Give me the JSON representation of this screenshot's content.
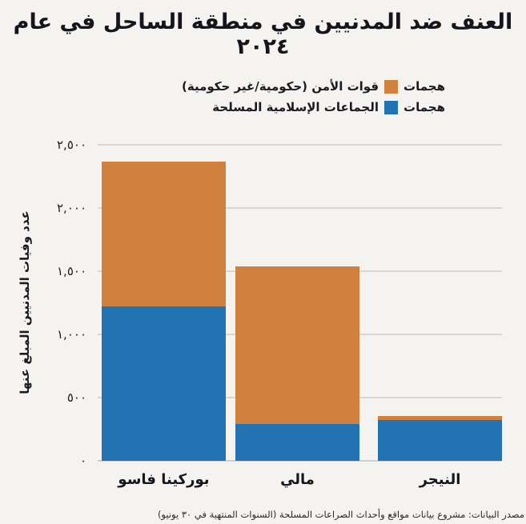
{
  "title": "العنف ضد المدنيين في منطقة الساحل في عام ٢٠٢٤",
  "legend": {
    "items": [
      {
        "word1": "هجمات",
        "rest": "قوات الأمن (حكومية/غير حكومية)",
        "color": "#d0813e"
      },
      {
        "word1": "هجمات",
        "rest": "الجماعات الإسلامية المسلحة",
        "color": "#2273b2"
      }
    ]
  },
  "footer": {
    "source": "مصدر البيانات: مشروع بيانات مواقع وأحداث الصراعات المسلحة (السنوات المنتهية في ٣٠ يونيو)"
  },
  "chart_data": {
    "type": "bar",
    "stacked": true,
    "title": "العنف ضد المدنيين في منطقة الساحل في عام ٢٠٢٤",
    "categories": [
      "بوركينا فاسو",
      "مالي",
      "النيجر"
    ],
    "series": [
      {
        "name": "هجمات الجماعات الإسلامية المسلحة",
        "color": "#2273b2",
        "values": [
          1220,
          290,
          325
        ]
      },
      {
        "name": "هجمات قوات الأمن (حكومية/غير حكومية)",
        "color": "#d0813e",
        "values": [
          1150,
          1250,
          30
        ]
      }
    ],
    "ylabel": "عدد وفيات المدنيين المبلغ عنها",
    "xlabel": "",
    "ylim": [
      0,
      2500
    ],
    "yticks": [
      0,
      500,
      1000,
      1500,
      2000,
      2500
    ],
    "ytick_labels": [
      "٠",
      "٥٠٠",
      "١,٠٠٠",
      "١,٥٠٠",
      "٢,٠٠٠",
      "٢,٥٠٠"
    ],
    "legend_position": "top-center",
    "grid": "horizontal",
    "background": "#f4f3ef"
  }
}
